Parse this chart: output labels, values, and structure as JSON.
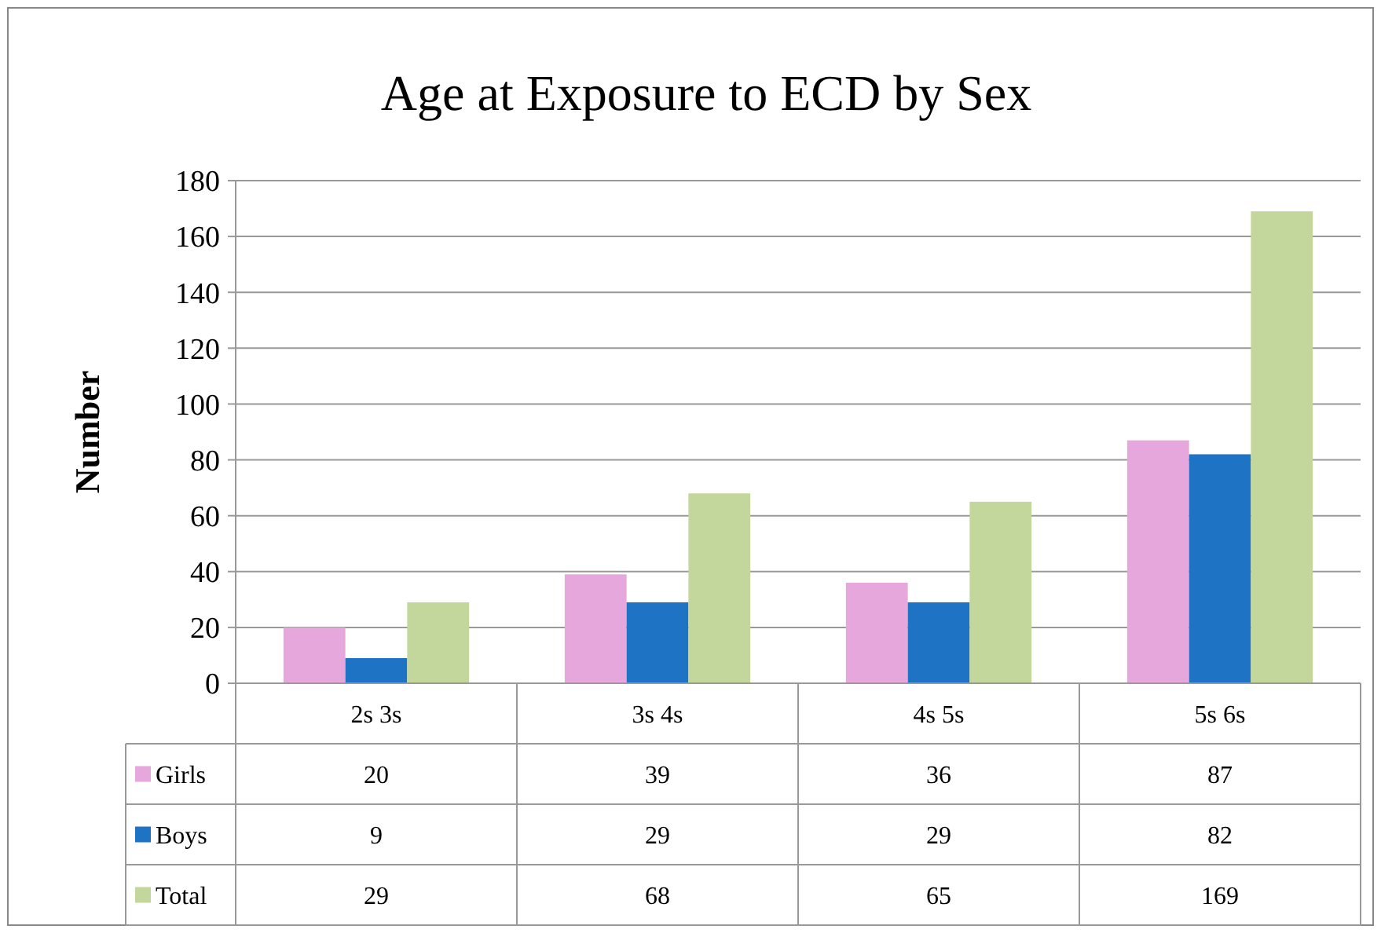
{
  "chart_data": {
    "type": "bar",
    "title": "Age at Exposure to ECD by Sex",
    "ylabel": "Number",
    "categories": [
      "2s 3s",
      "3s 4s",
      "4s 5s",
      "5s 6s"
    ],
    "series": [
      {
        "name": "Girls",
        "color": "#e6a8dc",
        "values": [
          20,
          39,
          36,
          87
        ]
      },
      {
        "name": "Boys",
        "color": "#1f73c4",
        "values": [
          9,
          29,
          29,
          82
        ]
      },
      {
        "name": "Total",
        "color": "#c3d69b",
        "values": [
          29,
          68,
          65,
          169
        ]
      }
    ],
    "ylim": [
      0,
      180
    ],
    "yticks": [
      0,
      20,
      40,
      60,
      80,
      100,
      120,
      140,
      160,
      180
    ],
    "grid": "y",
    "data_labels": true,
    "legend": "bottom"
  }
}
